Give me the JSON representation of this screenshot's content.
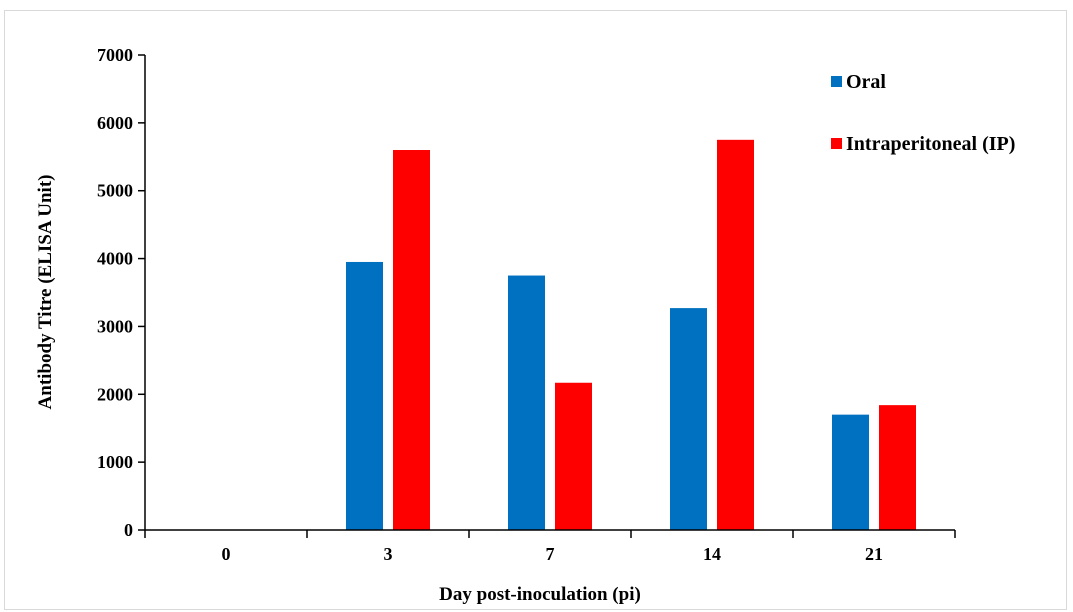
{
  "chart_data": {
    "type": "bar",
    "title": "",
    "xlabel": "Day post-inoculation (pi)",
    "ylabel": "Antibody Titre (ELISA Unit)",
    "categories": [
      "0",
      "3",
      "7",
      "14",
      "21"
    ],
    "ylim": [
      0,
      7000
    ],
    "yticks": [
      "0",
      "1000",
      "2000",
      "3000",
      "4000",
      "5000",
      "6000",
      "7000"
    ],
    "series": [
      {
        "name": "Oral",
        "color": "#0070c0",
        "values": [
          0,
          3950,
          3750,
          3270,
          1700
        ]
      },
      {
        "name": "Intraperitoneal (IP)",
        "color": "#ff0000",
        "values": [
          0,
          5600,
          2170,
          5750,
          1840
        ]
      }
    ],
    "legend_position": "top-right",
    "grid": false
  }
}
